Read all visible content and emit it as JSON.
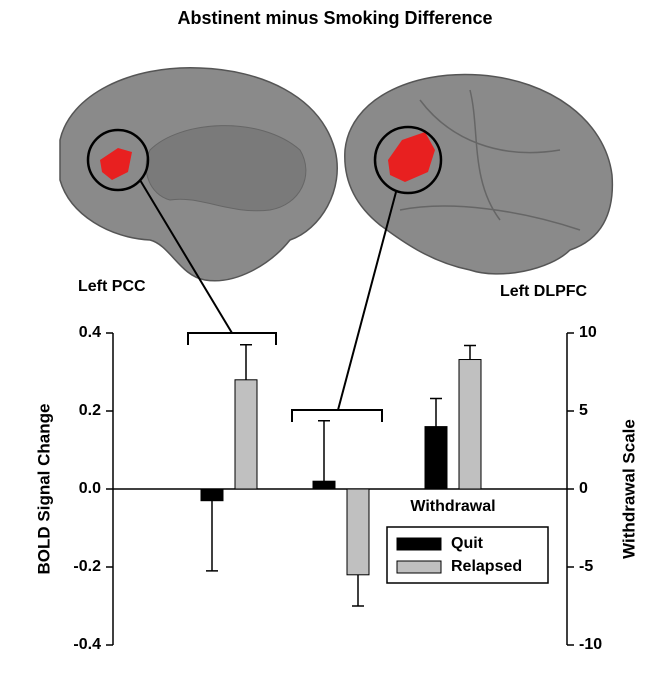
{
  "chart_data": {
    "type": "bar",
    "title": "Abstinent minus Smoking Difference",
    "annotations": [
      "Left PCC",
      "Left DLPFC"
    ],
    "categories": [
      null,
      null,
      "Withdrawal"
    ],
    "axis": [
      "y",
      "y",
      "y2"
    ],
    "ylabel": "BOLD Signal Change",
    "y2label": "Withdrawal Scale",
    "ylim": [
      -0.4,
      0.4
    ],
    "yticks": [
      -0.4,
      -0.2,
      {
        "value": 0,
        "label": "0.0"
      },
      0.2,
      0.4
    ],
    "y2lim": [
      -10,
      10
    ],
    "y2ticks": [
      -10,
      -5,
      0,
      5,
      10
    ],
    "legend": "lower right",
    "series": [
      {
        "name": "Quit",
        "color": "#000000",
        "values": [
          -0.03,
          0.02,
          4
        ],
        "errors": [
          0.18,
          0.155,
          1.8
        ]
      },
      {
        "name": "Relapsed",
        "color": "#c0c0c0",
        "values": [
          0.28,
          -0.22,
          8.3
        ],
        "errors": [
          0.09,
          0.08,
          0.9
        ]
      }
    ]
  }
}
